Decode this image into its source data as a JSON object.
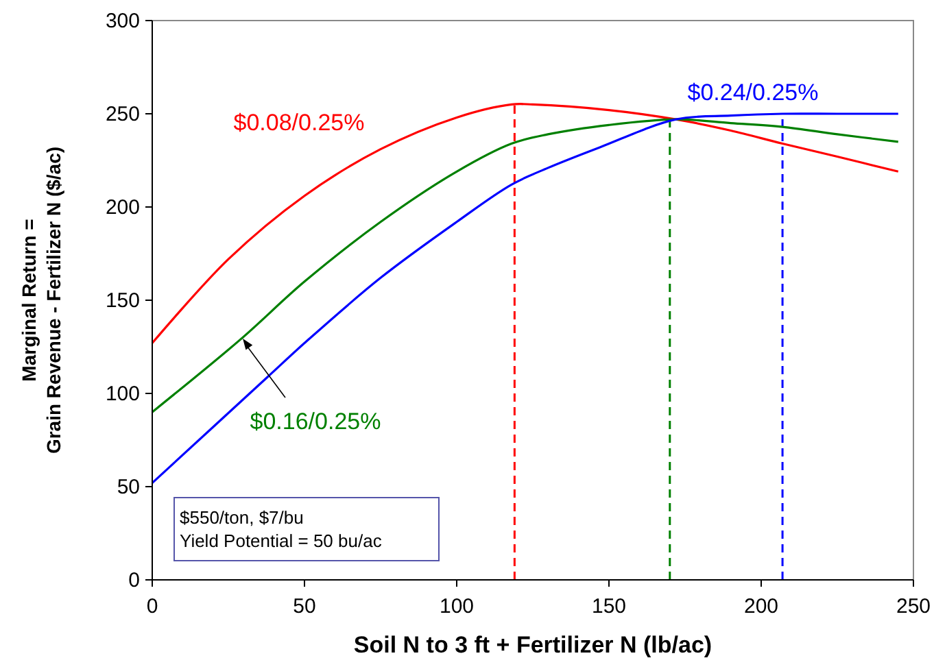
{
  "chart_data": {
    "type": "line",
    "xlabel": "Soil N to 3 ft + Fertilizer N (lb/ac)",
    "ylabel": "Marginal Return =\nGrain Revenue - Fertilizer N ($/ac)",
    "xlim": [
      0,
      250
    ],
    "xticks": [
      0,
      50,
      100,
      150,
      200,
      250
    ],
    "ylim": [
      0,
      300
    ],
    "yticks": [
      0,
      50,
      100,
      150,
      200,
      250,
      300
    ],
    "grid": false,
    "marker": "none",
    "line_style": "solid",
    "series": [
      {
        "name": "$0.08/0.25%",
        "color": "#ff0000",
        "x": [
          0,
          25,
          50,
          75,
          100,
          118,
          125,
          150,
          172,
          190,
          207,
          225,
          245
        ],
        "values": [
          127,
          172,
          206,
          231,
          248,
          255,
          255,
          252,
          247,
          241,
          234,
          227,
          219
        ]
      },
      {
        "name": "$0.16/0.25%",
        "color": "#008000",
        "x": [
          0,
          29,
          50,
          75,
          100,
          118,
          130,
          150,
          172,
          190,
          207,
          225,
          245
        ],
        "values": [
          90,
          129,
          160,
          192,
          219,
          234,
          239,
          244,
          247,
          245,
          243,
          239,
          235
        ]
      },
      {
        "name": "$0.24/0.25%",
        "color": "#0000ff",
        "x": [
          0,
          38,
          50,
          75,
          100,
          118,
          130,
          147,
          172,
          190,
          207,
          225,
          245
        ],
        "values": [
          52,
          109,
          127,
          162,
          192,
          212,
          221,
          232,
          247,
          249,
          250,
          250,
          250
        ]
      }
    ],
    "ref_lines": [
      {
        "axis": "x",
        "value": 119,
        "color": "#ff0000",
        "line_style": "dashed"
      },
      {
        "axis": "x",
        "value": 170,
        "color": "#008000",
        "line_style": "dashed"
      },
      {
        "axis": "x",
        "value": 207,
        "color": "#0000ff",
        "line_style": "dashed"
      }
    ],
    "annotations": [
      "$550/ton, $7/bu",
      "Yield Potential = 50 bu/ac"
    ]
  }
}
